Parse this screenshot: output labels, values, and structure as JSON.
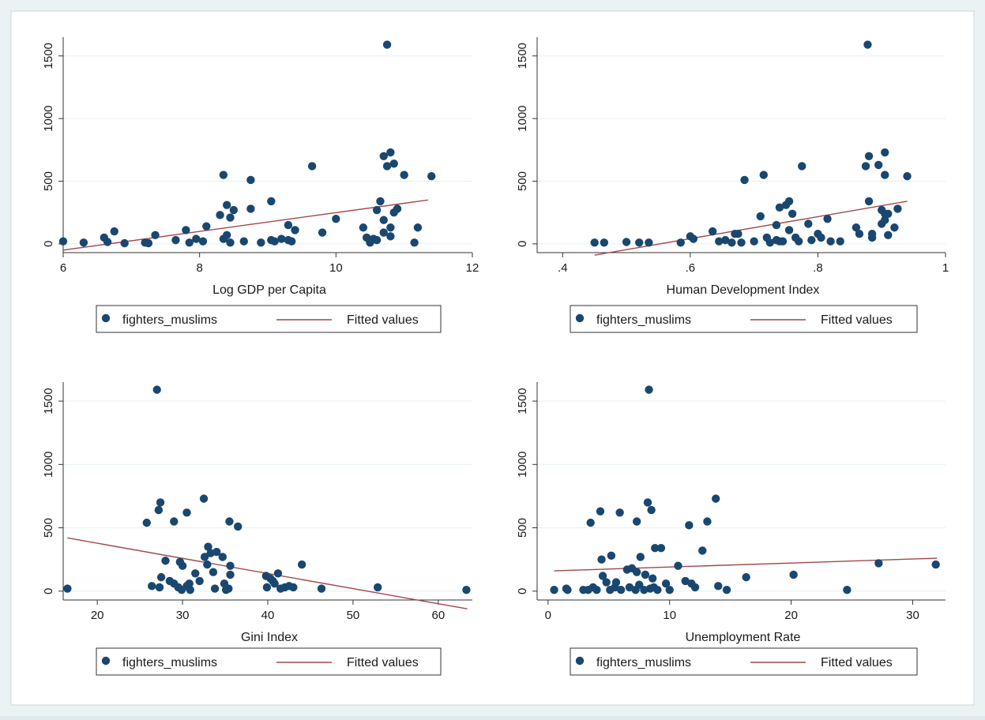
{
  "chart_data": [
    {
      "type": "scatter",
      "xlabel": "Log GDP per Capita",
      "ylabel": "",
      "xlim": [
        6,
        12
      ],
      "ylim": [
        -70,
        1650
      ],
      "xticks": [
        6,
        8,
        10,
        12
      ],
      "xtick_labels": [
        "6",
        "8",
        "10",
        "12"
      ],
      "yticks": [
        0,
        500,
        1000,
        1500
      ],
      "ytick_labels": [
        "0",
        "500",
        "1000",
        "1500"
      ],
      "grid": true,
      "legend": [
        "fighters_muslims",
        "Fitted values"
      ],
      "series": [
        {
          "name": "fighters_muslims",
          "marker_color": "#1a476f",
          "points": [
            [
              6.0,
              20
            ],
            [
              6.3,
              10
            ],
            [
              6.6,
              50
            ],
            [
              6.65,
              15
            ],
            [
              6.75,
              100
            ],
            [
              6.9,
              5
            ],
            [
              7.2,
              10
            ],
            [
              7.25,
              5
            ],
            [
              7.35,
              70
            ],
            [
              7.65,
              30
            ],
            [
              7.8,
              110
            ],
            [
              7.85,
              10
            ],
            [
              7.95,
              40
            ],
            [
              8.05,
              20
            ],
            [
              8.1,
              140
            ],
            [
              8.3,
              230
            ],
            [
              8.35,
              550
            ],
            [
              8.35,
              40
            ],
            [
              8.4,
              310
            ],
            [
              8.4,
              70
            ],
            [
              8.45,
              210
            ],
            [
              8.45,
              10
            ],
            [
              8.5,
              270
            ],
            [
              8.65,
              20
            ],
            [
              8.75,
              510
            ],
            [
              8.75,
              280
            ],
            [
              8.9,
              10
            ],
            [
              9.05,
              30
            ],
            [
              9.05,
              340
            ],
            [
              9.1,
              20
            ],
            [
              9.2,
              40
            ],
            [
              9.3,
              30
            ],
            [
              9.3,
              150
            ],
            [
              9.35,
              20
            ],
            [
              9.4,
              110
            ],
            [
              9.65,
              620
            ],
            [
              9.8,
              90
            ],
            [
              10.0,
              200
            ],
            [
              10.4,
              130
            ],
            [
              10.45,
              50
            ],
            [
              10.5,
              10
            ],
            [
              10.55,
              40
            ],
            [
              10.6,
              270
            ],
            [
              10.6,
              30
            ],
            [
              10.65,
              340
            ],
            [
              10.7,
              190
            ],
            [
              10.7,
              700
            ],
            [
              10.7,
              90
            ],
            [
              10.75,
              620
            ],
            [
              10.75,
              1590
            ],
            [
              10.8,
              130
            ],
            [
              10.8,
              730
            ],
            [
              10.8,
              60
            ],
            [
              10.85,
              640
            ],
            [
              10.85,
              250
            ],
            [
              10.9,
              280
            ],
            [
              11.0,
              550
            ],
            [
              11.15,
              10
            ],
            [
              11.2,
              130
            ],
            [
              11.4,
              540
            ]
          ]
        },
        {
          "name": "Fitted values",
          "line_color": "#a0484b",
          "line": [
            [
              6.0,
              -50
            ],
            [
              11.35,
              350
            ]
          ]
        }
      ]
    },
    {
      "type": "scatter",
      "xlabel": "Human Development Index",
      "ylabel": "",
      "xlim": [
        0.36,
        1.0
      ],
      "ylim": [
        -70,
        1650
      ],
      "xticks": [
        0.4,
        0.6,
        0.8,
        1.0
      ],
      "xtick_labels": [
        ".4",
        ".6",
        ".8",
        "1"
      ],
      "yticks": [
        0,
        500,
        1000,
        1500
      ],
      "ytick_labels": [
        "0",
        "500",
        "1000",
        "1500"
      ],
      "grid": true,
      "legend": [
        "fighters_muslims",
        "Fitted values"
      ],
      "series": [
        {
          "name": "fighters_muslims",
          "marker_color": "#1a476f",
          "points": [
            [
              0.45,
              10
            ],
            [
              0.465,
              10
            ],
            [
              0.5,
              15
            ],
            [
              0.52,
              10
            ],
            [
              0.535,
              10
            ],
            [
              0.585,
              10
            ],
            [
              0.6,
              60
            ],
            [
              0.605,
              40
            ],
            [
              0.635,
              100
            ],
            [
              0.645,
              20
            ],
            [
              0.655,
              30
            ],
            [
              0.665,
              10
            ],
            [
              0.67,
              80
            ],
            [
              0.675,
              80
            ],
            [
              0.68,
              10
            ],
            [
              0.685,
              510
            ],
            [
              0.7,
              20
            ],
            [
              0.71,
              220
            ],
            [
              0.715,
              550
            ],
            [
              0.72,
              50
            ],
            [
              0.725,
              10
            ],
            [
              0.735,
              30
            ],
            [
              0.735,
              150
            ],
            [
              0.74,
              290
            ],
            [
              0.74,
              20
            ],
            [
              0.745,
              20
            ],
            [
              0.75,
              310
            ],
            [
              0.755,
              340
            ],
            [
              0.755,
              110
            ],
            [
              0.76,
              240
            ],
            [
              0.765,
              50
            ],
            [
              0.77,
              20
            ],
            [
              0.775,
              620
            ],
            [
              0.785,
              160
            ],
            [
              0.79,
              30
            ],
            [
              0.8,
              80
            ],
            [
              0.805,
              50
            ],
            [
              0.815,
              200
            ],
            [
              0.82,
              20
            ],
            [
              0.835,
              20
            ],
            [
              0.86,
              130
            ],
            [
              0.865,
              80
            ],
            [
              0.875,
              620
            ],
            [
              0.878,
              1590
            ],
            [
              0.88,
              340
            ],
            [
              0.88,
              700
            ],
            [
              0.885,
              50
            ],
            [
              0.885,
              80
            ],
            [
              0.895,
              630
            ],
            [
              0.9,
              270
            ],
            [
              0.9,
              160
            ],
            [
              0.905,
              550
            ],
            [
              0.905,
              240
            ],
            [
              0.905,
              730
            ],
            [
              0.905,
              190
            ],
            [
              0.91,
              70
            ],
            [
              0.91,
              240
            ],
            [
              0.92,
              130
            ],
            [
              0.925,
              280
            ],
            [
              0.94,
              540
            ]
          ]
        },
        {
          "name": "Fitted values",
          "line_color": "#a0484b",
          "line": [
            [
              0.45,
              -90
            ],
            [
              0.94,
              340
            ]
          ]
        }
      ]
    },
    {
      "type": "scatter",
      "xlabel": "Gini Index",
      "ylabel": "",
      "xlim": [
        16,
        64
      ],
      "ylim": [
        -70,
        1650
      ],
      "xticks": [
        20,
        30,
        40,
        50,
        60
      ],
      "xtick_labels": [
        "20",
        "30",
        "40",
        "50",
        "60"
      ],
      "yticks": [
        0,
        500,
        1000,
        1500
      ],
      "ytick_labels": [
        "0",
        "500",
        "1000",
        "1500"
      ],
      "grid": true,
      "legend": [
        "fighters_muslims",
        "Fitted values"
      ],
      "series": [
        {
          "name": "fighters_muslims",
          "marker_color": "#1a476f",
          "points": [
            [
              16.5,
              20
            ],
            [
              25.8,
              540
            ],
            [
              26.4,
              40
            ],
            [
              27.0,
              1590
            ],
            [
              27.2,
              640
            ],
            [
              27.3,
              30
            ],
            [
              27.4,
              700
            ],
            [
              27.5,
              110
            ],
            [
              28.0,
              240
            ],
            [
              28.5,
              80
            ],
            [
              29.0,
              60
            ],
            [
              29.0,
              550
            ],
            [
              29.5,
              30
            ],
            [
              29.7,
              230
            ],
            [
              29.9,
              10
            ],
            [
              30.0,
              200
            ],
            [
              30.5,
              620
            ],
            [
              30.5,
              40
            ],
            [
              30.8,
              60
            ],
            [
              30.9,
              10
            ],
            [
              31.5,
              140
            ],
            [
              32.0,
              80
            ],
            [
              32.5,
              730
            ],
            [
              32.6,
              270
            ],
            [
              32.9,
              210
            ],
            [
              33.0,
              350
            ],
            [
              33.3,
              300
            ],
            [
              33.6,
              150
            ],
            [
              33.8,
              20
            ],
            [
              34.0,
              310
            ],
            [
              34.7,
              270
            ],
            [
              34.9,
              60
            ],
            [
              35.1,
              10
            ],
            [
              35.4,
              20
            ],
            [
              35.5,
              550
            ],
            [
              35.6,
              130
            ],
            [
              35.6,
              200
            ],
            [
              36.5,
              510
            ],
            [
              39.8,
              120
            ],
            [
              39.9,
              30
            ],
            [
              40.3,
              100
            ],
            [
              40.6,
              80
            ],
            [
              40.8,
              60
            ],
            [
              41.2,
              140
            ],
            [
              41.5,
              20
            ],
            [
              42.0,
              30
            ],
            [
              42.5,
              40
            ],
            [
              43.0,
              30
            ],
            [
              44.0,
              210
            ],
            [
              46.3,
              20
            ],
            [
              52.9,
              30
            ],
            [
              63.3,
              10
            ]
          ]
        },
        {
          "name": "Fitted values",
          "line_color": "#a0484b",
          "line": [
            [
              16.5,
              420
            ],
            [
              63.4,
              -140
            ]
          ]
        }
      ]
    },
    {
      "type": "scatter",
      "xlabel": "Unemployment Rate",
      "ylabel": "",
      "xlim": [
        -0.9,
        32.7
      ],
      "ylim": [
        -70,
        1650
      ],
      "xticks": [
        0,
        10,
        20,
        30
      ],
      "xtick_labels": [
        "0",
        "10",
        "20",
        "30"
      ],
      "yticks": [
        0,
        500,
        1000,
        1500
      ],
      "ytick_labels": [
        "0",
        "500",
        "1000",
        "1500"
      ],
      "grid": true,
      "legend": [
        "fighters_muslims",
        "Fitted values"
      ],
      "series": [
        {
          "name": "fighters_muslims",
          "marker_color": "#1a476f",
          "points": [
            [
              0.5,
              10
            ],
            [
              1.5,
              20
            ],
            [
              1.6,
              10
            ],
            [
              2.9,
              10
            ],
            [
              3.3,
              10
            ],
            [
              3.5,
              540
            ],
            [
              3.7,
              30
            ],
            [
              4.0,
              10
            ],
            [
              4.3,
              630
            ],
            [
              4.4,
              250
            ],
            [
              4.5,
              120
            ],
            [
              4.8,
              70
            ],
            [
              5.1,
              10
            ],
            [
              5.2,
              280
            ],
            [
              5.5,
              30
            ],
            [
              5.6,
              70
            ],
            [
              5.9,
              620
            ],
            [
              6.0,
              10
            ],
            [
              6.5,
              170
            ],
            [
              6.7,
              30
            ],
            [
              6.9,
              180
            ],
            [
              7.2,
              10
            ],
            [
              7.3,
              550
            ],
            [
              7.3,
              150
            ],
            [
              7.5,
              50
            ],
            [
              7.6,
              270
            ],
            [
              7.9,
              10
            ],
            [
              8.0,
              130
            ],
            [
              8.2,
              700
            ],
            [
              8.3,
              1590
            ],
            [
              8.4,
              20
            ],
            [
              8.5,
              640
            ],
            [
              8.6,
              100
            ],
            [
              8.7,
              30
            ],
            [
              8.8,
              340
            ],
            [
              9.0,
              10
            ],
            [
              9.3,
              340
            ],
            [
              9.7,
              60
            ],
            [
              10.0,
              10
            ],
            [
              10.7,
              200
            ],
            [
              11.3,
              80
            ],
            [
              11.6,
              520
            ],
            [
              11.8,
              60
            ],
            [
              12.1,
              30
            ],
            [
              12.7,
              320
            ],
            [
              13.1,
              550
            ],
            [
              13.8,
              730
            ],
            [
              14.0,
              40
            ],
            [
              14.7,
              10
            ],
            [
              16.3,
              110
            ],
            [
              20.2,
              130
            ],
            [
              24.6,
              10
            ],
            [
              27.2,
              220
            ],
            [
              31.9,
              210
            ]
          ]
        },
        {
          "name": "Fitted values",
          "line_color": "#a0484b",
          "line": [
            [
              0.5,
              160
            ],
            [
              32.0,
              260
            ]
          ]
        }
      ]
    }
  ]
}
